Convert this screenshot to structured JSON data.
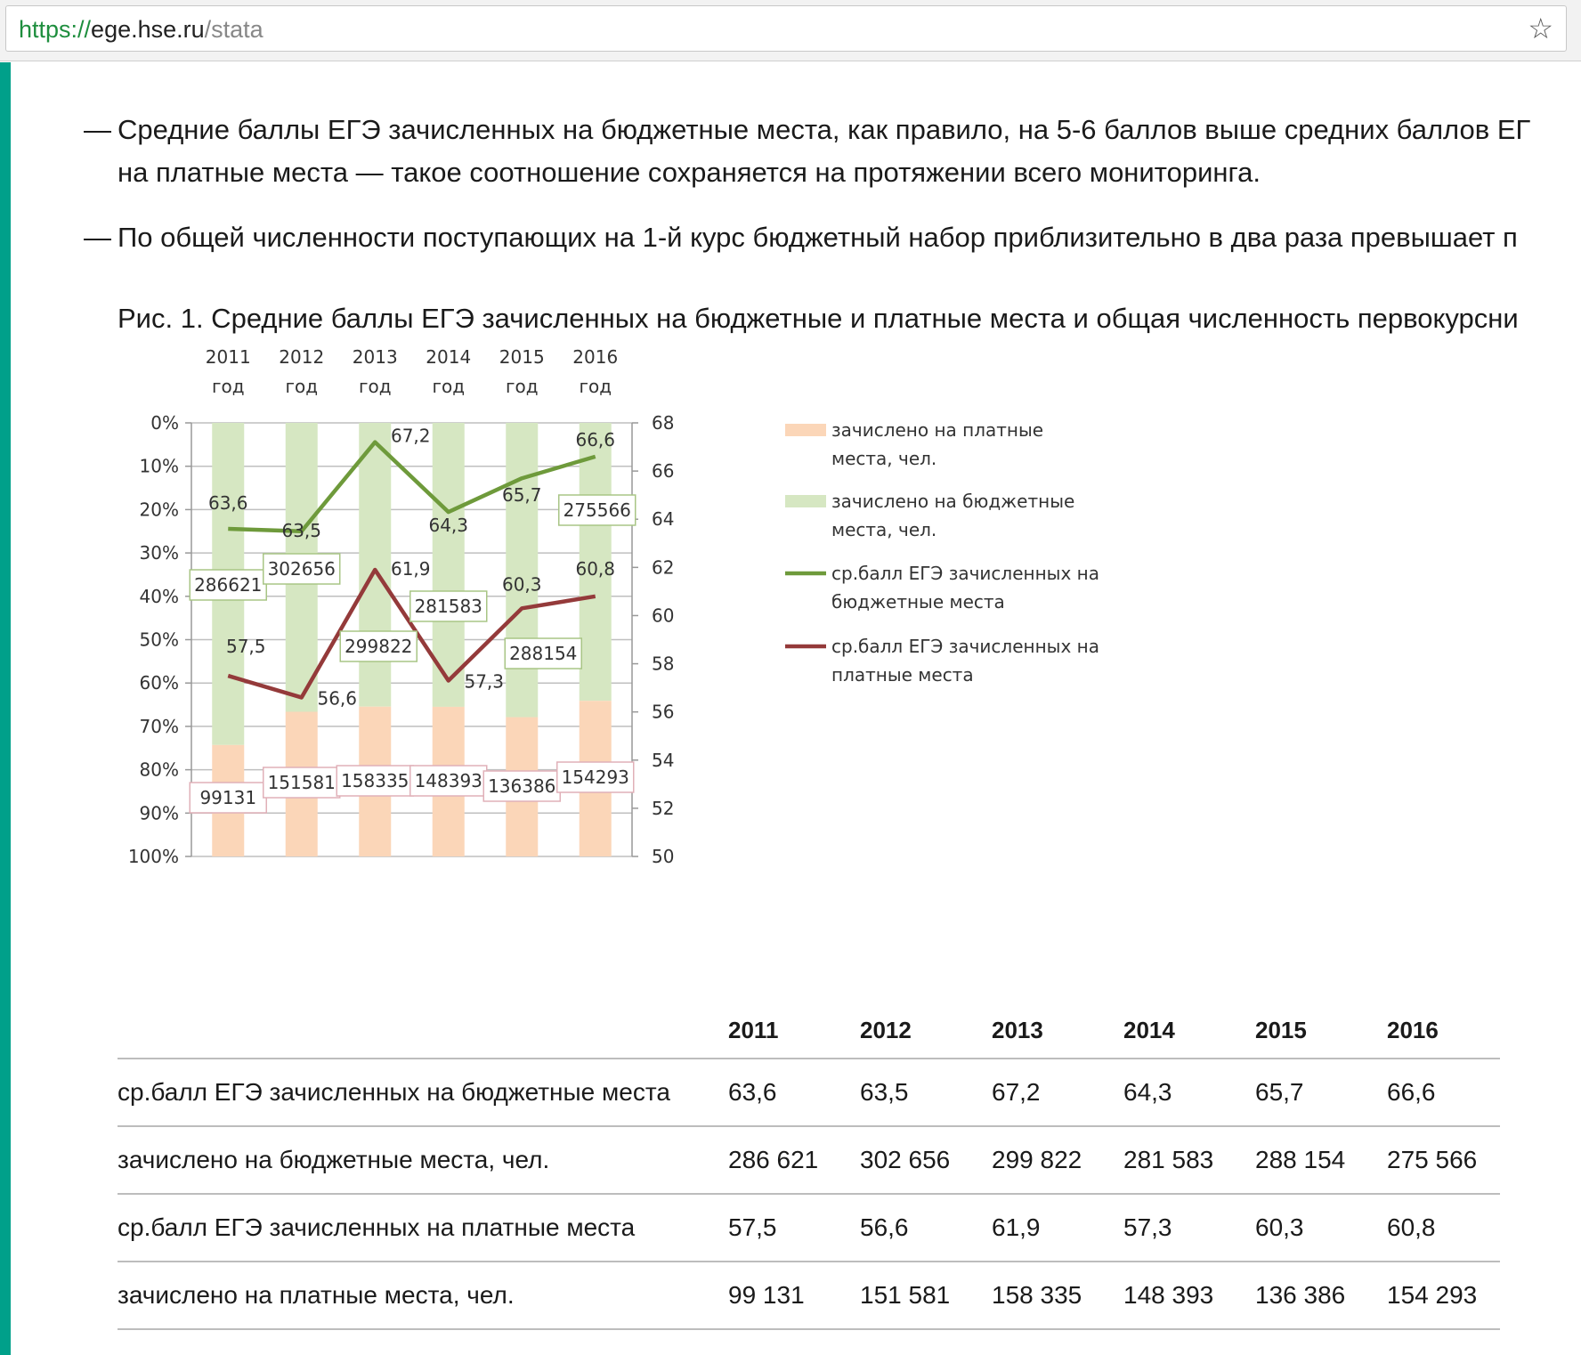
{
  "browser": {
    "url_scheme": "https://",
    "url_host": "ege.hse.ru",
    "url_path": "/stata",
    "bookmark_icon": "star-icon"
  },
  "paragraphs": [
    {
      "dash": "—",
      "line1": "Средние баллы ЕГЭ зачисленных на бюджетные места, как правило, на 5-6 баллов выше средних баллов ЕГ",
      "line2": "на платные места — такое соотношение сохраняется на протяжении всего мониторинга."
    },
    {
      "dash": "—",
      "line1": "По общей численности поступающих на 1-й курс бюджетный набор приблизительно в два раза превышает п"
    }
  ],
  "figure_caption": "Рис. 1. Средние баллы ЕГЭ зачисленных на бюджетные и платные места и общая численность первокурсни",
  "chart_data": {
    "type": "bar",
    "stacked": "100%",
    "categories": [
      "2011 год",
      "2012 год",
      "2013 год",
      "2014 год",
      "2015 год",
      "2016 год"
    ],
    "category_years": [
      "2011",
      "2012",
      "2013",
      "2014",
      "2015",
      "2016"
    ],
    "category_suffix": "год",
    "left_axis_ticks": [
      "0%",
      "10%",
      "20%",
      "30%",
      "40%",
      "50%",
      "60%",
      "70%",
      "80%",
      "90%",
      "100%"
    ],
    "right_axis": {
      "min": 50,
      "max": 68,
      "ticks": [
        "68",
        "66",
        "64",
        "62",
        "60",
        "58",
        "56",
        "54",
        "52",
        "50"
      ]
    },
    "grid": true,
    "legend_position": "right",
    "bar_series": [
      {
        "name": "зачислено на платные места, чел.",
        "legend_lines": [
          "зачислено на платные",
          "места, чел."
        ],
        "color": "#fbd6b8",
        "label_border": "#e0b0b8",
        "values": [
          99131,
          151581,
          158335,
          148393,
          136386,
          154293
        ],
        "labels": [
          "99131",
          "151581",
          "158335",
          "148393",
          "136386",
          "154293"
        ]
      },
      {
        "name": "зачислено на бюджетные места, чел.",
        "legend_lines": [
          "зачислено на бюджетные",
          "места, чел."
        ],
        "color": "#d6e7c2",
        "label_border": "#a8c585",
        "values": [
          286621,
          302656,
          299822,
          281583,
          288154,
          275566
        ],
        "labels": [
          "286621",
          "302656",
          "299822",
          "281583",
          "288154",
          "275566"
        ]
      }
    ],
    "line_series": [
      {
        "name": "ср.балл ЕГЭ зачисленных на бюджетные места",
        "legend_lines": [
          "ср.балл ЕГЭ зачисленных на",
          "бюджетные  места"
        ],
        "color": "#6e9a3b",
        "values": [
          63.6,
          63.5,
          67.2,
          64.3,
          65.7,
          66.6
        ],
        "labels": [
          "63,6",
          "63,5",
          "67,2",
          "64,3",
          "65,7",
          "66,6"
        ]
      },
      {
        "name": "ср.балл ЕГЭ зачисленных на платные места",
        "legend_lines": [
          "ср.балл ЕГЭ зачисленных на",
          "платные места"
        ],
        "color": "#943a3a",
        "values": [
          57.5,
          56.6,
          61.9,
          57.3,
          60.3,
          60.8
        ],
        "labels": [
          "57,5",
          "56,6",
          "61,9",
          "57,3",
          "60,3",
          "60,8"
        ]
      }
    ]
  },
  "table": {
    "headers": [
      "",
      "2011",
      "2012",
      "2013",
      "2014",
      "2015",
      "2016"
    ],
    "rows": [
      [
        "ср.балл ЕГЭ зачисленных на бюджетные места",
        "63,6",
        "63,5",
        "67,2",
        "64,3",
        "65,7",
        "66,6"
      ],
      [
        "зачислено на бюджетные места, чел.",
        "286 621",
        "302 656",
        "299 822",
        "281 583",
        "288 154",
        "275 566"
      ],
      [
        "ср.балл ЕГЭ зачисленных на платные места",
        "57,5",
        "56,6",
        "61,9",
        "57,3",
        "60,3",
        "60,8"
      ],
      [
        "зачислено на платные места, чел.",
        "99 131",
        "151 581",
        "158 335",
        "148 393",
        "136 386",
        "154 293"
      ]
    ]
  }
}
